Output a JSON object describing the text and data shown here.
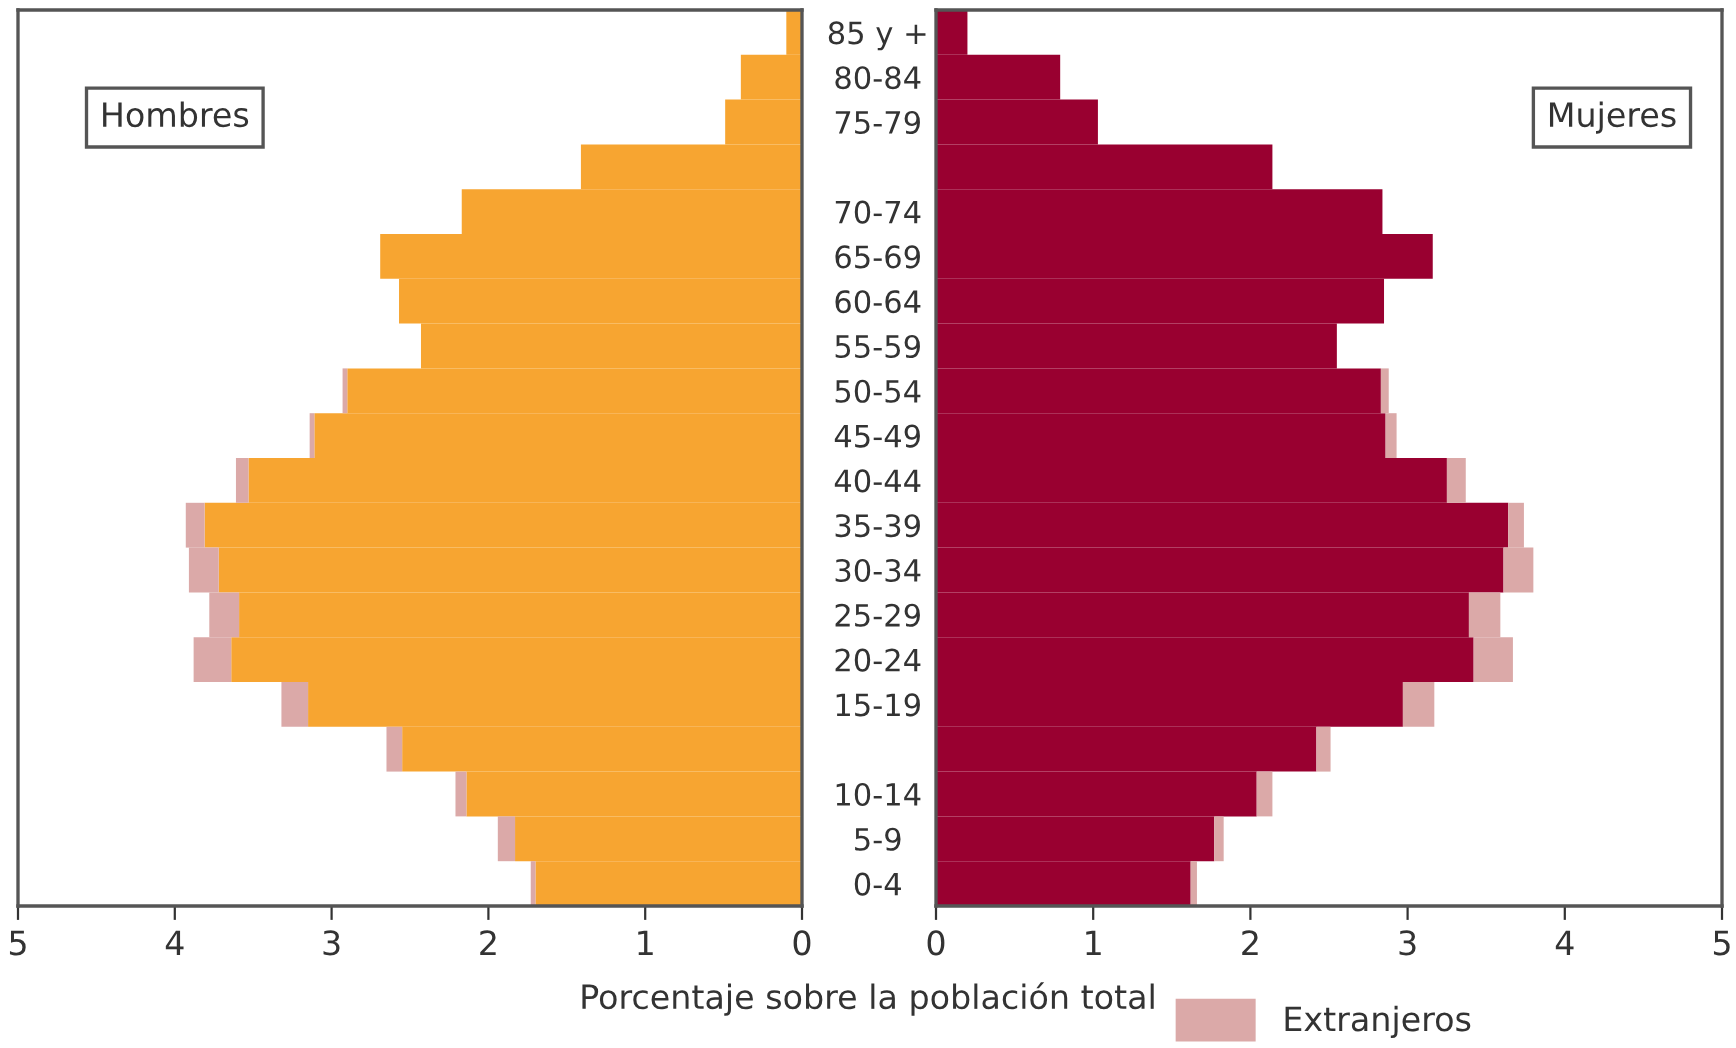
{
  "chart_data": [
    {
      "type": "bar",
      "orientation": "horizontal",
      "stacked": true,
      "xlim": [
        5,
        0
      ],
      "xticks": [
        5,
        4,
        3,
        2,
        1,
        0
      ],
      "xlabel": "Porcentaje sobre la población total",
      "annotations": [
        "Hombres"
      ],
      "legend": false,
      "grid": false,
      "categories": [
        "85 y +",
        "80-84",
        "75-79",
        null,
        "70-74",
        "65-69",
        "60-64",
        "55-59",
        "50-54",
        "45-49",
        "40-44",
        "35-39",
        "30-34",
        "25-29",
        "20-24",
        "15-19",
        null,
        "10-14",
        "5-9",
        "0-4"
      ],
      "series": [
        {
          "color": "#f7a531",
          "values": [
            0.1,
            0.39,
            0.49,
            1.41,
            2.17,
            2.69,
            2.57,
            2.43,
            2.9,
            3.11,
            3.53,
            3.81,
            3.72,
            3.59,
            3.64,
            3.15,
            2.55,
            2.14,
            1.83,
            1.7
          ]
        },
        {
          "color": "#dba9a8",
          "values": [
            null,
            null,
            null,
            null,
            null,
            null,
            null,
            null,
            0.03,
            0.03,
            0.08,
            0.12,
            0.19,
            0.19,
            0.24,
            0.17,
            0.1,
            0.07,
            0.11,
            0.03
          ]
        }
      ]
    },
    {
      "type": "bar",
      "orientation": "horizontal",
      "stacked": true,
      "tick_labels": "x",
      "xlim": [
        0,
        5
      ],
      "xticks": [
        0,
        1,
        2,
        3,
        4,
        5
      ],
      "annotations": [
        "Mujeres"
      ],
      "legend": "bottom right",
      "grid": false,
      "categories": [
        null,
        null,
        null,
        null,
        null,
        null,
        null,
        null,
        null,
        null,
        null,
        null,
        null,
        null,
        null,
        null,
        null,
        null,
        null,
        null
      ],
      "series": [
        {
          "color": "#990030",
          "values": [
            0.2,
            0.79,
            1.03,
            2.14,
            2.84,
            3.16,
            2.85,
            2.55,
            2.83,
            2.86,
            3.25,
            3.64,
            3.61,
            3.39,
            3.42,
            2.97,
            2.42,
            2.04,
            1.77,
            1.62
          ]
        },
        {
          "name": "Extranjeros",
          "color": "#dba9a8",
          "values": [
            null,
            null,
            null,
            null,
            null,
            null,
            null,
            null,
            0.05,
            0.07,
            0.12,
            0.1,
            0.19,
            0.2,
            0.25,
            0.2,
            0.09,
            0.1,
            0.06,
            0.04
          ]
        }
      ]
    }
  ]
}
